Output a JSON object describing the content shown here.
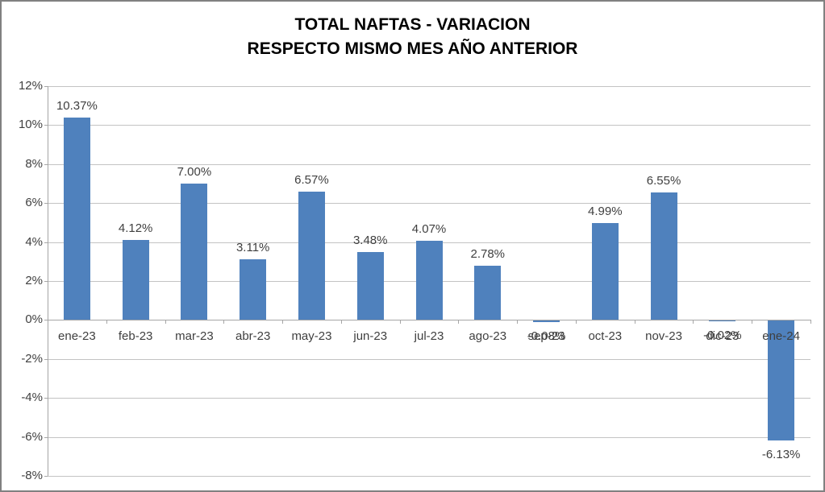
{
  "chart_data": {
    "type": "bar",
    "title": "TOTAL NAFTAS - VARIACION",
    "subtitle": "RESPECTO MISMO MES AÑO ANTERIOR",
    "categories": [
      "ene-23",
      "feb-23",
      "mar-23",
      "abr-23",
      "may-23",
      "jun-23",
      "jul-23",
      "ago-23",
      "sep-23",
      "oct-23",
      "nov-23",
      "dic-23",
      "ene-24"
    ],
    "values": [
      10.37,
      4.12,
      7.0,
      3.11,
      6.57,
      3.48,
      4.07,
      2.78,
      -0.08,
      4.99,
      6.55,
      -0.02,
      -6.13
    ],
    "data_labels": [
      "10.37%",
      "4.12%",
      "7.00%",
      "3.11%",
      "6.57%",
      "3.48%",
      "4.07%",
      "2.78%",
      "-0.08%",
      "4.99%",
      "6.55%",
      "-0.02%",
      "-6.13%"
    ],
    "y_tick_values": [
      12,
      10,
      8,
      6,
      4,
      2,
      0,
      -2,
      -4,
      -6,
      -8
    ],
    "y_tick_labels": [
      "12%",
      "10%",
      "8%",
      "6%",
      "4%",
      "2%",
      "0%",
      "-2%",
      "-4%",
      "-6%",
      "-8%"
    ],
    "ylim": [
      -8,
      12
    ],
    "y_step": 2,
    "grid": true,
    "legend": "none",
    "xlabel": "",
    "ylabel": "",
    "colors": {
      "bar": "#4F81BD",
      "gridline": "#C3C3C3",
      "axis": "#A6A6A6",
      "label_text": "#3F3F3F",
      "title_text": "#000000",
      "frame_border": "#808080",
      "background": "#FFFFFF"
    }
  }
}
